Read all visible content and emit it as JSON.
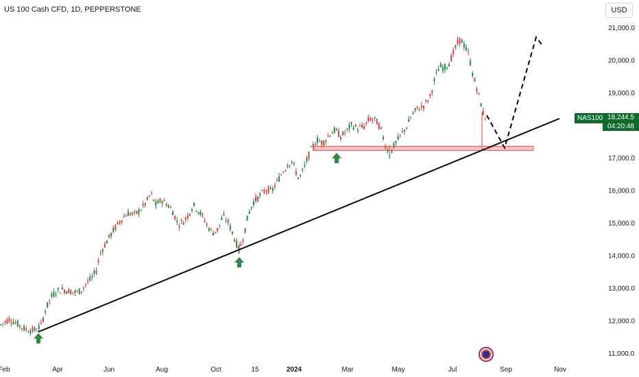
{
  "header": {
    "title": "US 100 Cash CFD, 1D, PEPPERSTONE",
    "currency": "USD"
  },
  "price": {
    "symbol": "NAS100",
    "last": "18,244.5",
    "countdown": "04:20:48"
  },
  "chart_data": {
    "type": "candlestick",
    "y_ticks": [
      "21,000.0",
      "20,000.0",
      "19,000.0",
      "18,000.0",
      "17,000.0",
      "16,000.0",
      "15,000.0",
      "14,000.0",
      "13,000.0",
      "12,000.0",
      "11,000.0"
    ],
    "x_ticks": [
      "Feb",
      "Apr",
      "Jun",
      "Aug",
      "Oct",
      "15",
      "2024",
      "Mar",
      "May",
      "Jul",
      "Sep",
      "Nov"
    ],
    "ylim": [
      11000,
      21500
    ],
    "colors": {
      "up": "#26a69a",
      "down": "#ef5350",
      "support": "#ef5350",
      "trend": "#000000",
      "arrow": "#2e7d32"
    },
    "close_path": [
      [
        0,
        11850
      ],
      [
        14,
        12050
      ],
      [
        25,
        11900
      ],
      [
        35,
        11750
      ],
      [
        44,
        11700
      ],
      [
        52,
        11700
      ],
      [
        60,
        11850
      ],
      [
        66,
        12300
      ],
      [
        74,
        12700
      ],
      [
        82,
        12900
      ],
      [
        92,
        12950
      ],
      [
        102,
        12900
      ],
      [
        112,
        12850
      ],
      [
        120,
        12950
      ],
      [
        126,
        13150
      ],
      [
        132,
        13250
      ],
      [
        140,
        13500
      ],
      [
        147,
        14100
      ],
      [
        155,
        14400
      ],
      [
        165,
        14750
      ],
      [
        175,
        15050
      ],
      [
        186,
        15300
      ],
      [
        197,
        15250
      ],
      [
        207,
        15450
      ],
      [
        214,
        15650
      ],
      [
        220,
        15900
      ],
      [
        227,
        15550
      ],
      [
        236,
        15700
      ],
      [
        245,
        15550
      ],
      [
        252,
        15350
      ],
      [
        260,
        14950
      ],
      [
        268,
        15050
      ],
      [
        275,
        15250
      ],
      [
        282,
        15550
      ],
      [
        290,
        15350
      ],
      [
        297,
        15150
      ],
      [
        304,
        14850
      ],
      [
        311,
        14700
      ],
      [
        318,
        14800
      ],
      [
        325,
        15200
      ],
      [
        332,
        15050
      ],
      [
        338,
        14750
      ],
      [
        344,
        14400
      ],
      [
        349,
        14150
      ],
      [
        356,
        14650
      ],
      [
        362,
        15250
      ],
      [
        370,
        15650
      ],
      [
        380,
        15850
      ],
      [
        390,
        16050
      ],
      [
        396,
        15950
      ],
      [
        404,
        16250
      ],
      [
        412,
        16550
      ],
      [
        420,
        16800
      ],
      [
        426,
        16900
      ],
      [
        430,
        16650
      ],
      [
        436,
        16350
      ],
      [
        442,
        16600
      ],
      [
        449,
        17000
      ],
      [
        455,
        17300
      ],
      [
        462,
        17550
      ],
      [
        471,
        17450
      ],
      [
        480,
        17700
      ],
      [
        489,
        17850
      ],
      [
        497,
        17650
      ],
      [
        505,
        17800
      ],
      [
        512,
        18000
      ],
      [
        522,
        17900
      ],
      [
        531,
        17950
      ],
      [
        539,
        18200
      ],
      [
        548,
        18150
      ],
      [
        555,
        17900
      ],
      [
        562,
        17400
      ],
      [
        568,
        17100
      ],
      [
        576,
        17400
      ],
      [
        585,
        17700
      ],
      [
        593,
        17950
      ],
      [
        601,
        18300
      ],
      [
        608,
        18500
      ],
      [
        615,
        18550
      ],
      [
        622,
        18700
      ],
      [
        628,
        18900
      ],
      [
        634,
        19400
      ],
      [
        641,
        19800
      ],
      [
        648,
        19750
      ],
      [
        655,
        19900
      ],
      [
        661,
        20200
      ],
      [
        667,
        20500
      ],
      [
        672,
        20650
      ],
      [
        678,
        20400
      ],
      [
        684,
        20150
      ],
      [
        690,
        19500
      ],
      [
        696,
        19100
      ],
      [
        701,
        18700
      ],
      [
        706,
        18250
      ],
      [
        710,
        18300
      ]
    ],
    "support_zone": {
      "low": 17220,
      "high": 17350,
      "label": ""
    },
    "trendline": [
      [
        "Mar-2023",
        11650
      ],
      [
        "Sep-2024",
        18200
      ]
    ],
    "projection": [
      [
        18300,
        17300,
        20700,
        20450
      ]
    ],
    "markers": [
      {
        "type": "up-arrow",
        "at": "late Mar 2023"
      },
      {
        "type": "up-arrow",
        "at": "Oct 2023"
      },
      {
        "type": "up-arrow",
        "at": "Feb 2024"
      }
    ]
  }
}
